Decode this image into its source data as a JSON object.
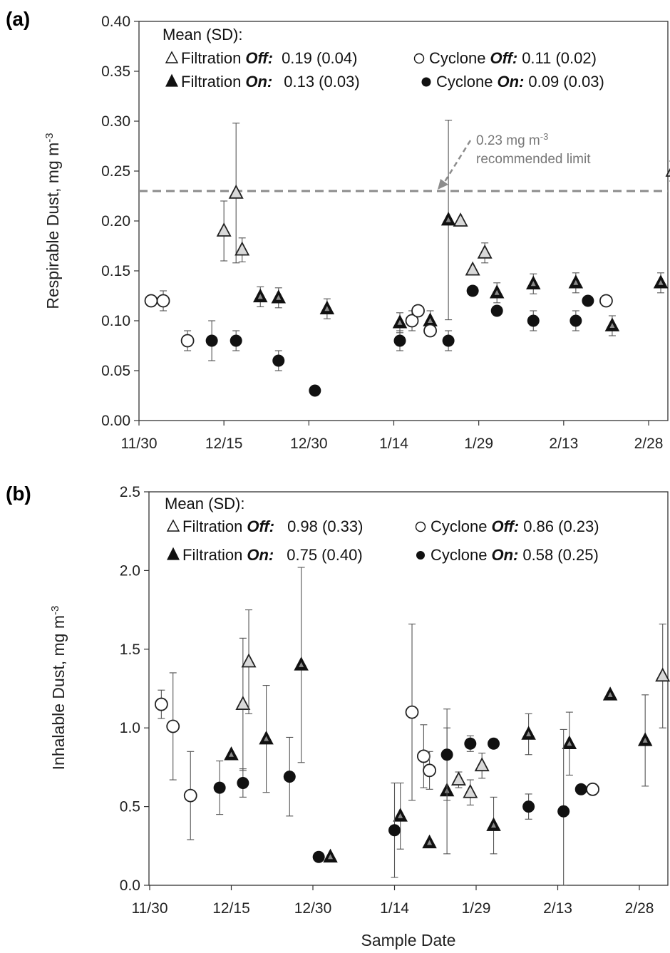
{
  "chart_data": [
    {
      "type": "scatter",
      "panel_label": "(a)",
      "ylabel": "Respirable Dust, mg m",
      "ylabel_sup": "-3",
      "ylim": [
        0,
        0.4
      ],
      "yticks": [
        "0.00",
        "0.05",
        "0.10",
        "0.15",
        "0.20",
        "0.25",
        "0.30",
        "0.35",
        "0.40"
      ],
      "xtick_labels": [
        "11/30",
        "12/15",
        "12/30",
        "1/14",
        "1/29",
        "2/13",
        "2/28"
      ],
      "legend_title": "Mean (SD):",
      "legend": [
        {
          "marker": "open-triangle",
          "name": "Filtration",
          "state": "Off:",
          "value": "0.19 (0.04)"
        },
        {
          "marker": "open-circle",
          "name": "Cyclone",
          "state": "Off:",
          "value": "0.11 (0.02)"
        },
        {
          "marker": "filled-triangle",
          "name": "Filtration",
          "state": "On:",
          "value": "0.13 (0.03)"
        },
        {
          "marker": "filled-circle",
          "name": "Cyclone",
          "state": "On:",
          "value": "0.09 (0.03)"
        }
      ],
      "reference_line": {
        "y": 0.23,
        "label_line1": "0.23 mg m",
        "label_sup": "-3",
        "label_line2": "recommended limit"
      },
      "series": [
        {
          "marker": "open-triangle",
          "points": [
            {
              "x": "12/14",
              "y": 0.19,
              "err": 0.03
            },
            {
              "x": "12/16",
              "y": 0.228,
              "err": 0.07
            },
            {
              "x": "12/17",
              "y": 0.171,
              "err": 0.012
            },
            {
              "x": "1/22",
              "y": 0.2,
              "err": 0.0
            },
            {
              "x": "1/24",
              "y": 0.151,
              "err": 0.0
            },
            {
              "x": "1/26",
              "y": 0.168,
              "err": 0.01
            },
            {
              "x": "2/26",
              "y": 0.25,
              "err": 0.01
            }
          ]
        },
        {
          "marker": "filled-triangle",
          "points": [
            {
              "x": "12/20",
              "y": 0.124,
              "err": 0.01
            },
            {
              "x": "12/23",
              "y": 0.123,
              "err": 0.01
            },
            {
              "x": "12/31",
              "y": 0.112,
              "err": 0.01
            },
            {
              "x": "1/12",
              "y": 0.098,
              "err": 0.01
            },
            {
              "x": "1/17",
              "y": 0.1,
              "err": 0.01
            },
            {
              "x": "1/20",
              "y": 0.201,
              "err": 0.1
            },
            {
              "x": "1/28",
              "y": 0.128,
              "err": 0.01
            },
            {
              "x": "2/3",
              "y": 0.137,
              "err": 0.01
            },
            {
              "x": "2/10",
              "y": 0.138,
              "err": 0.01
            },
            {
              "x": "2/16",
              "y": 0.095,
              "err": 0.01
            },
            {
              "x": "2/24",
              "y": 0.138,
              "err": 0.01
            }
          ]
        },
        {
          "marker": "open-circle",
          "points": [
            {
              "x": "12/2",
              "y": 0.12,
              "err": 0.0
            },
            {
              "x": "12/4",
              "y": 0.12,
              "err": 0.01
            },
            {
              "x": "12/8",
              "y": 0.08,
              "err": 0.01
            },
            {
              "x": "1/14",
              "y": 0.1,
              "err": 0.01
            },
            {
              "x": "1/15",
              "y": 0.11,
              "err": 0.0
            },
            {
              "x": "1/17",
              "y": 0.09,
              "err": 0.0
            },
            {
              "x": "2/15",
              "y": 0.12,
              "err": 0.0
            }
          ]
        },
        {
          "marker": "filled-circle",
          "points": [
            {
              "x": "12/12",
              "y": 0.08,
              "err": 0.02
            },
            {
              "x": "12/16",
              "y": 0.08,
              "err": 0.01
            },
            {
              "x": "12/23",
              "y": 0.06,
              "err": 0.01
            },
            {
              "x": "12/29",
              "y": 0.03,
              "err": 0.0
            },
            {
              "x": "1/12",
              "y": 0.08,
              "err": 0.01
            },
            {
              "x": "1/20",
              "y": 0.08,
              "err": 0.01
            },
            {
              "x": "1/24",
              "y": 0.13,
              "err": 0.0
            },
            {
              "x": "1/28",
              "y": 0.11,
              "err": 0.0
            },
            {
              "x": "2/3",
              "y": 0.1,
              "err": 0.01
            },
            {
              "x": "2/10",
              "y": 0.1,
              "err": 0.01
            },
            {
              "x": "2/12",
              "y": 0.12,
              "err": 0.0
            }
          ]
        }
      ]
    },
    {
      "type": "scatter",
      "panel_label": "(b)",
      "ylabel": "Inhalable Dust, mg m",
      "ylabel_sup": "-3",
      "xlabel": "Sample Date",
      "ylim": [
        0,
        2.5
      ],
      "yticks": [
        "0.0",
        "0.5",
        "1.0",
        "1.5",
        "2.0",
        "2.5"
      ],
      "xtick_labels": [
        "11/30",
        "12/15",
        "12/30",
        "1/14",
        "1/29",
        "2/13",
        "2/28"
      ],
      "legend_title": "Mean (SD):",
      "legend": [
        {
          "marker": "open-triangle",
          "name": "Filtration",
          "state": "Off:",
          "value": "0.98 (0.33)"
        },
        {
          "marker": "open-circle",
          "name": "Cyclone",
          "state": "Off:",
          "value": "0.86 (0.23)"
        },
        {
          "marker": "filled-triangle",
          "name": "Filtration",
          "state": "On:",
          "value": "0.75 (0.40)"
        },
        {
          "marker": "filled-circle",
          "name": "Cyclone",
          "state": "On:",
          "value": "0.58 (0.25)"
        }
      ],
      "series": [
        {
          "marker": "open-triangle",
          "points": [
            {
              "x": "12/16",
              "y": 1.15,
              "err": 0.42
            },
            {
              "x": "12/17",
              "y": 1.42,
              "err": 0.33
            },
            {
              "x": "1/22",
              "y": 0.67,
              "err": 0.05
            },
            {
              "x": "1/24",
              "y": 0.59,
              "err": 0.08
            },
            {
              "x": "1/26",
              "y": 0.76,
              "err": 0.08
            },
            {
              "x": "2/26",
              "y": 1.33,
              "err": 0.33
            }
          ]
        },
        {
          "marker": "filled-triangle",
          "points": [
            {
              "x": "12/14",
              "y": 0.83,
              "err": 0.0
            },
            {
              "x": "12/20",
              "y": 0.93,
              "err": 0.34
            },
            {
              "x": "12/26",
              "y": 1.4,
              "err": 0.62
            },
            {
              "x": "12/31",
              "y": 0.18,
              "err": 0.0
            },
            {
              "x": "1/12",
              "y": 0.44,
              "err": 0.21
            },
            {
              "x": "1/17",
              "y": 0.27,
              "err": 0.0
            },
            {
              "x": "1/20",
              "y": 0.6,
              "err": 0.4
            },
            {
              "x": "1/28",
              "y": 0.38,
              "err": 0.18
            },
            {
              "x": "2/3",
              "y": 0.96,
              "err": 0.13
            },
            {
              "x": "2/10",
              "y": 0.9,
              "err": 0.2
            },
            {
              "x": "2/17",
              "y": 1.21,
              "err": 0.0
            },
            {
              "x": "2/23",
              "y": 0.92,
              "err": 0.29
            }
          ]
        },
        {
          "marker": "open-circle",
          "points": [
            {
              "x": "12/2",
              "y": 1.15,
              "err": 0.09
            },
            {
              "x": "12/4",
              "y": 1.01,
              "err": 0.34
            },
            {
              "x": "12/7",
              "y": 0.57,
              "err": 0.28
            },
            {
              "x": "1/14",
              "y": 1.1,
              "err": 0.56
            },
            {
              "x": "1/16",
              "y": 0.82,
              "err": 0.2
            },
            {
              "x": "1/17",
              "y": 0.73,
              "err": 0.12
            },
            {
              "x": "2/14",
              "y": 0.61,
              "err": 0.0
            }
          ]
        },
        {
          "marker": "filled-circle",
          "points": [
            {
              "x": "12/12",
              "y": 0.62,
              "err": 0.17
            },
            {
              "x": "12/16",
              "y": 0.65,
              "err": 0.09
            },
            {
              "x": "12/24",
              "y": 0.69,
              "err": 0.25
            },
            {
              "x": "12/29",
              "y": 0.18,
              "err": 0.0
            },
            {
              "x": "1/11",
              "y": 0.35,
              "err": 0.3
            },
            {
              "x": "1/20",
              "y": 0.83,
              "err": 0.29
            },
            {
              "x": "1/24",
              "y": 0.9,
              "err": 0.05
            },
            {
              "x": "1/28",
              "y": 0.9,
              "err": 0.0
            },
            {
              "x": "2/3",
              "y": 0.5,
              "err": 0.08
            },
            {
              "x": "2/9",
              "y": 0.47,
              "err": 0.52
            },
            {
              "x": "2/12",
              "y": 0.61,
              "err": 0.0
            }
          ]
        }
      ]
    }
  ]
}
